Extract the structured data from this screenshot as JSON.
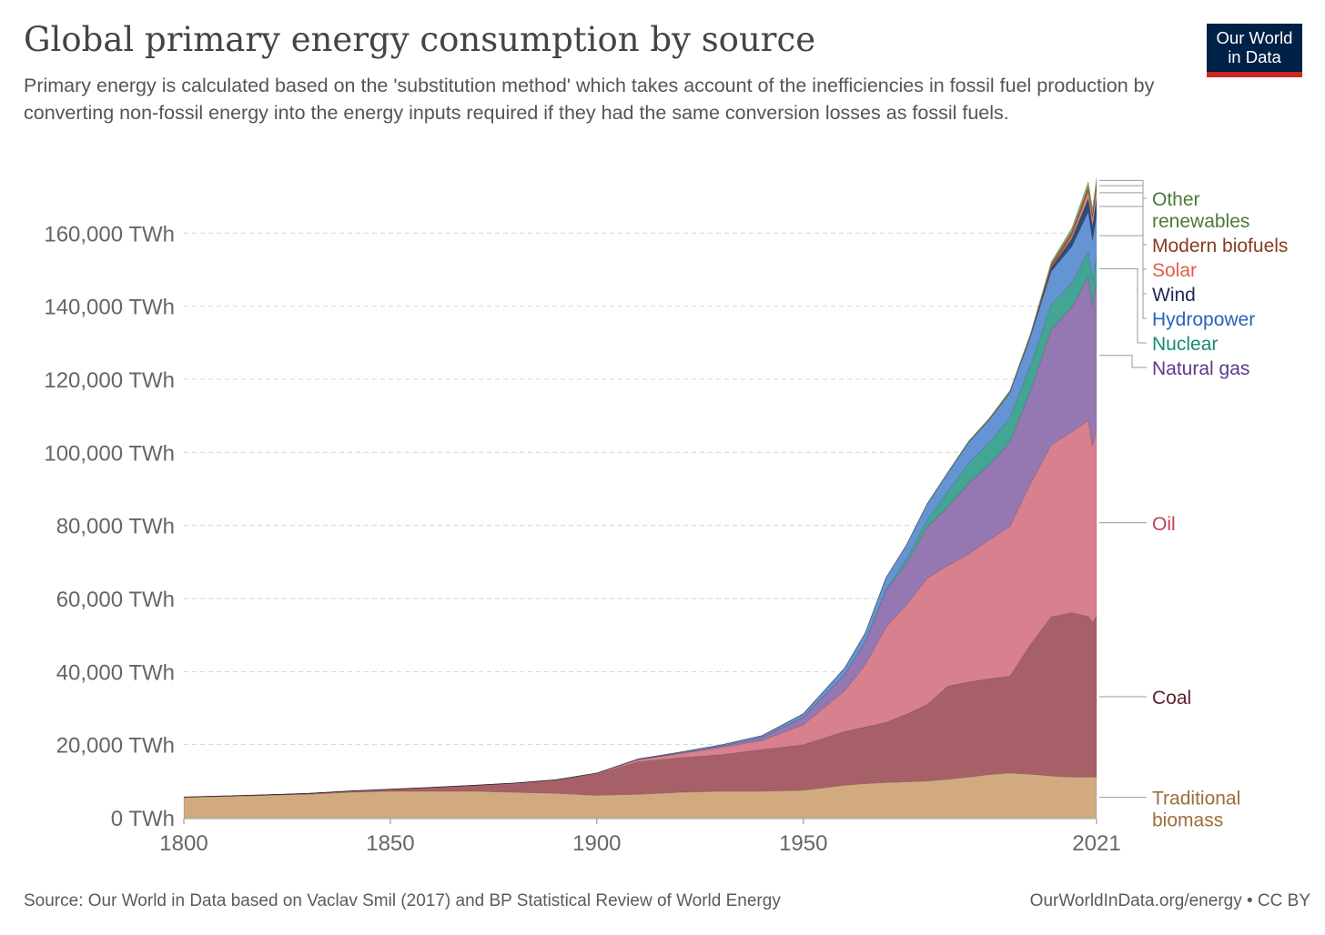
{
  "title": "Global primary energy consumption by source",
  "subtitle": "Primary energy is calculated based on the 'substitution method' which takes account of the inefficiencies in fossil fuel production by converting non-fossil energy into the energy inputs required if they had the same conversion losses as fossil fuels.",
  "logo": {
    "line1": "Our World",
    "line2": "in Data",
    "bg_color": "#002147",
    "accent_color": "#ce261e"
  },
  "footer": {
    "source": "Source: Our World in Data based on Vaclav Smil (2017) and BP Statistical Review of World Energy",
    "link": "OurWorldInData.org/energy • CC BY"
  },
  "chart_data": {
    "type": "area",
    "stacked": true,
    "x": [
      1800,
      1810,
      1820,
      1830,
      1840,
      1850,
      1860,
      1870,
      1880,
      1890,
      1900,
      1910,
      1920,
      1930,
      1940,
      1950,
      1960,
      1965,
      1970,
      1975,
      1980,
      1985,
      1990,
      1995,
      2000,
      2005,
      2010,
      2015,
      2019,
      2020,
      2021
    ],
    "xticks": [
      1800,
      1850,
      1900,
      1950,
      2021
    ],
    "xtick_labels": [
      "1800",
      "1850",
      "1900",
      "1950",
      "2021"
    ],
    "xlim": [
      1800,
      2021
    ],
    "ylim": [
      0,
      175000
    ],
    "yticks": [
      0,
      20000,
      40000,
      60000,
      80000,
      100000,
      120000,
      140000,
      160000
    ],
    "ytick_labels": [
      "0 TWh",
      "20,000 TWh",
      "40,000 TWh",
      "60,000 TWh",
      "80,000 TWh",
      "100,000 TWh",
      "120,000 TWh",
      "140,000 TWh",
      "160,000 TWh"
    ],
    "grid": "horizontal-dashed",
    "legend": "right-inline",
    "series": [
      {
        "name": "Traditional biomass",
        "fill": "#d1aa80",
        "label_color": "#9a6f3c",
        "label_lines": [
          "Traditional",
          "biomass"
        ],
        "values": [
          5556,
          5833,
          6111,
          6389,
          6944,
          7222,
          7222,
          7222,
          6944,
          6667,
          6111,
          6389,
          6944,
          7222,
          7222,
          7500,
          8889,
          9300,
          9600,
          9800,
          10000,
          10500,
          11111,
          11800,
          12222,
          11900,
          11389,
          11111,
          11111,
          11111,
          11111
        ]
      },
      {
        "name": "Coal",
        "fill": "#a86068",
        "label_color": "#5b1f29",
        "label_lines": [
          "Coal"
        ],
        "values": [
          97,
          128,
          153,
          264,
          356,
          569,
          1061,
          1642,
          2500,
          3611,
          5833,
          8889,
          9444,
          10000,
          11389,
          12500,
          14722,
          15500,
          16500,
          18500,
          21000,
          25500,
          26000,
          26200,
          26500,
          35500,
          43611,
          45000,
          44000,
          42300,
          44000
        ]
      },
      {
        "name": "Oil",
        "fill": "#d8808e",
        "label_color": "#c24155",
        "label_lines": [
          "Oil"
        ],
        "values": [
          0,
          0,
          0,
          0,
          0,
          0,
          0,
          6,
          33,
          89,
          181,
          556,
          1111,
          1944,
          2500,
          5444,
          11111,
          17000,
          26000,
          30000,
          34500,
          33000,
          35000,
          38000,
          41000,
          44000,
          47000,
          49500,
          53600,
          48200,
          51200
        ]
      },
      {
        "name": "Natural gas",
        "fill": "#9577b1",
        "label_color": "#5d3a8a",
        "label_lines": [
          "Natural gas"
        ],
        "values": [
          0,
          0,
          0,
          0,
          0,
          0,
          0,
          0,
          3,
          14,
          64,
          139,
          194,
          389,
          833,
          2083,
          4444,
          6300,
          10000,
          11500,
          14000,
          16000,
          19500,
          20500,
          23000,
          25500,
          31600,
          34200,
          39300,
          38500,
          40400
        ]
      },
      {
        "name": "Nuclear",
        "fill": "#43a593",
        "label_color": "#19887a",
        "label_lines": [
          "Nuclear"
        ],
        "values": [
          0,
          0,
          0,
          0,
          0,
          0,
          0,
          0,
          0,
          0,
          0,
          0,
          0,
          0,
          0,
          0,
          12,
          70,
          230,
          1100,
          2000,
          4200,
          5400,
          6100,
          6700,
          7000,
          6900,
          6500,
          7000,
          6700,
          7030
        ]
      },
      {
        "name": "Hydropower",
        "fill": "#6494d3",
        "label_color": "#2a62b8",
        "label_lines": [
          "Hydropower"
        ],
        "values": [
          0,
          0,
          0,
          0,
          0,
          0,
          0,
          0,
          0,
          6,
          28,
          111,
          222,
          333,
          500,
          940,
          1800,
          2400,
          3300,
          3800,
          4400,
          5200,
          5700,
          6300,
          6900,
          7700,
          9000,
          10000,
          10800,
          11100,
          11100
        ]
      },
      {
        "name": "Wind",
        "fill": "#2d4b7b",
        "label_color": "#1a2a5a",
        "label_lines": [
          "Wind"
        ],
        "values": [
          0,
          0,
          0,
          0,
          0,
          0,
          0,
          0,
          0,
          0,
          0,
          0,
          0,
          0,
          0,
          0,
          0,
          0,
          0,
          0,
          0,
          0,
          10,
          20,
          80,
          280,
          900,
          2200,
          3700,
          4000,
          4870
        ]
      },
      {
        "name": "Solar",
        "fill": "#e58a79",
        "label_color": "#e05d48",
        "label_lines": [
          "Solar"
        ],
        "values": [
          0,
          0,
          0,
          0,
          0,
          0,
          0,
          0,
          0,
          0,
          0,
          0,
          0,
          0,
          0,
          0,
          0,
          0,
          0,
          0,
          0,
          0,
          0,
          0,
          4,
          10,
          90,
          700,
          1800,
          2200,
          2700
        ]
      },
      {
        "name": "Modern biofuels",
        "fill": "#a5573e",
        "label_color": "#8a3b1e",
        "label_lines": [
          "Modern biofuels"
        ],
        "values": [
          0,
          0,
          0,
          0,
          0,
          0,
          0,
          0,
          0,
          0,
          0,
          0,
          0,
          0,
          0,
          0,
          0,
          0,
          0,
          0,
          30,
          80,
          120,
          150,
          180,
          300,
          900,
          1100,
          1200,
          1100,
          1150
        ]
      },
      {
        "name": "Other renewables",
        "fill": "#7ea869",
        "label_color": "#4a7a3a",
        "label_lines": [
          "Other",
          "renewables"
        ],
        "values": [
          0,
          0,
          0,
          0,
          0,
          0,
          0,
          0,
          0,
          0,
          0,
          0,
          0,
          0,
          0,
          0,
          20,
          30,
          50,
          80,
          110,
          200,
          250,
          300,
          350,
          420,
          700,
          1100,
          1600,
          1650,
          1700
        ]
      }
    ]
  }
}
